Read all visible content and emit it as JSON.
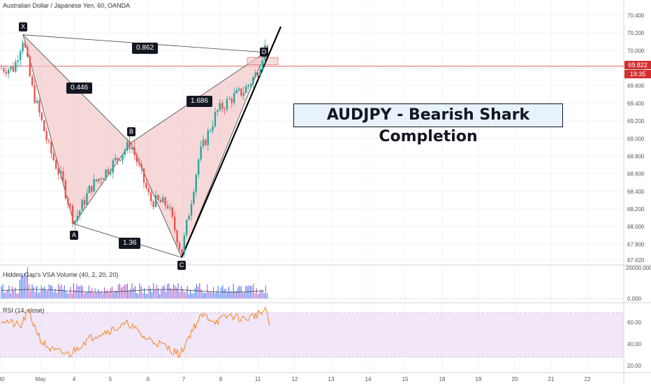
{
  "chart_title": "Australian Dollar / Japanese Yen, 60, OANDA",
  "annotation": "AUDJPY - Bearish Shark Completion",
  "current_price": "69.822",
  "countdown": "19:35",
  "pattern_points": [
    "X",
    "A",
    "B",
    "C",
    "D"
  ],
  "ratios": {
    "xb": "0.446",
    "xd": "0.862",
    "ac": "1.36",
    "bd": "1.686"
  },
  "indicators": {
    "volume_title": "Hidden Gap's VSA Volume (40, 2, 20, 20)",
    "rsi_title": "RSI (14, close)"
  },
  "colors": {
    "up": "#26a69a",
    "down": "#ef5350",
    "pattern_fill": "#f4c7c7",
    "rsi_line": "#f57c00",
    "rsi_band": "#e9d6f5"
  },
  "chart_data": [
    {
      "type": "candlestick",
      "y_axis_ticks": [
        "70.400",
        "70.200",
        "70.000",
        "69.800",
        "69.600",
        "69.400",
        "69.200",
        "69.000",
        "68.800",
        "68.600",
        "68.400",
        "68.200",
        "68.000",
        "67.800",
        "67.620"
      ],
      "x_axis_labels": [
        "30",
        "May",
        "4",
        "5",
        "6",
        "7",
        "8",
        "11",
        "12",
        "13",
        "14",
        "15",
        "18",
        "19",
        "20",
        "21",
        "22"
      ],
      "ylim": [
        67.6,
        70.45
      ],
      "swing_points": [
        {
          "label": "X",
          "price": 70.18
        },
        {
          "label": "A",
          "price": 68.03
        },
        {
          "label": "B",
          "price": 68.95
        },
        {
          "label": "C",
          "price": 67.65
        },
        {
          "label": "D",
          "price": 69.98
        }
      ]
    },
    {
      "type": "bar",
      "title": "Hidden Gap's VSA Volume (40, 2, 20, 20)",
      "y_axis_ticks": [
        "20000.000",
        "0.000"
      ]
    },
    {
      "type": "line",
      "title": "RSI (14, close)",
      "y_axis_ticks": [
        "60.00",
        "40.00",
        "20.00"
      ],
      "ylim": [
        20,
        80
      ]
    }
  ]
}
